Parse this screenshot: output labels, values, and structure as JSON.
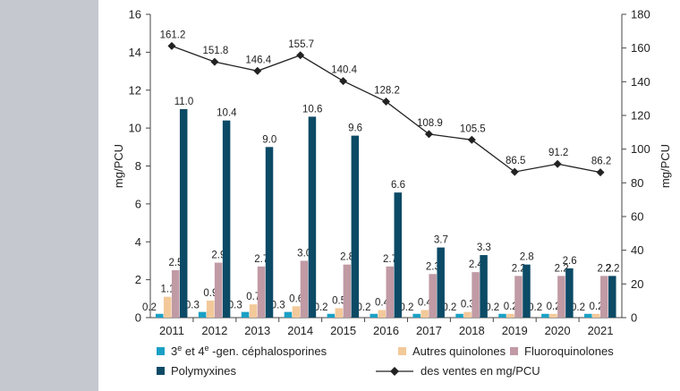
{
  "colors": {
    "background_band": "#c6c8cf",
    "cephalosporines": "#1aa0c4",
    "quinolones": "#f3c99a",
    "fluoroquinolones": "#c09aa4",
    "polymyxines": "#0c4a66",
    "line": "#222222"
  },
  "chart_data": {
    "type": "bar",
    "categories": [
      "2011",
      "2012",
      "2013",
      "2014",
      "2015",
      "2016",
      "2017",
      "2018",
      "2019",
      "2020",
      "2021"
    ],
    "y_left": {
      "label": "mg/PCU",
      "ylim": [
        0,
        16
      ],
      "ticks": [
        "0",
        "2",
        "4",
        "6",
        "8",
        "10",
        "12",
        "14",
        "16"
      ]
    },
    "y_right": {
      "label": "mg/PCU",
      "ylim": [
        0,
        180
      ],
      "ticks": [
        "0",
        "20",
        "40",
        "60",
        "80",
        "100",
        "120",
        "140",
        "160",
        "180"
      ]
    },
    "series": [
      {
        "key": "ceph",
        "legend_prefix": "3",
        "legend_sup1": "e",
        "legend_mid": " et 4",
        "legend_sup2": "e",
        "legend_suffix": " -gen. céphalosporines",
        "values": [
          0.2,
          0.3,
          0.3,
          0.3,
          0.2,
          0.2,
          0.2,
          0.2,
          0.2,
          0.2,
          0.2
        ],
        "labels": [
          "0.2",
          "0.3",
          "0.3",
          "0.3",
          "0.2",
          "0.2",
          "0.2",
          "0.2",
          "0.2",
          "0.2",
          "0.2"
        ],
        "axis": "left"
      },
      {
        "key": "quin",
        "name": "Autres quinolones",
        "values": [
          1.1,
          0.9,
          0.7,
          0.6,
          0.5,
          0.4,
          0.4,
          0.3,
          0.2,
          0.2,
          0.2
        ],
        "labels": [
          "1.1",
          "0.9",
          "0.7",
          "0.6",
          "0.5",
          "0.4",
          "0.4",
          "0.3",
          "0.2",
          "0.2",
          "0.2"
        ],
        "axis": "left"
      },
      {
        "key": "fluoro",
        "name": "Fluoroquinolones",
        "values": [
          2.5,
          2.9,
          2.7,
          3.0,
          2.8,
          2.7,
          2.3,
          2.4,
          2.2,
          2.2,
          2.2
        ],
        "labels": [
          "2.5",
          "2.9",
          "2.7",
          "3.0",
          "2.8",
          "2.7",
          "2.3",
          "2.4",
          "2.2",
          "2.2",
          "2.2"
        ],
        "axis": "left"
      },
      {
        "key": "poly",
        "name": "Polymyxines",
        "values": [
          11.0,
          10.4,
          9.0,
          10.6,
          9.6,
          6.6,
          3.7,
          3.3,
          2.8,
          2.6,
          2.2
        ],
        "labels": [
          "11.0",
          "10.4",
          "9.0",
          "10.6",
          "9.6",
          "6.6",
          "3.7",
          "3.3",
          "2.8",
          "2.6",
          "2.2"
        ],
        "axis": "left"
      }
    ],
    "line": {
      "name": "des ventes en mg/PCU",
      "values": [
        161.2,
        151.8,
        146.4,
        155.7,
        140.4,
        128.2,
        108.9,
        105.5,
        86.5,
        91.2,
        86.2
      ],
      "labels": [
        "161.2",
        "151.8",
        "146.4",
        "155.7",
        "140.4",
        "128.2",
        "108.9",
        "105.5",
        "86.5",
        "91.2",
        "86.2"
      ],
      "axis": "right"
    },
    "grid": false,
    "legend_position": "bottom"
  }
}
